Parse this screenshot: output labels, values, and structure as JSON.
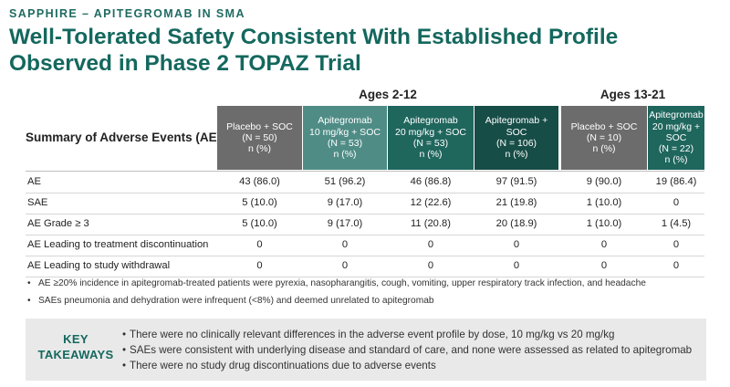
{
  "eyebrow": "SAPPHIRE – APITEGROMAB IN SMA",
  "title_line1": "Well-Tolerated Safety Consistent With Established Profile",
  "title_line2": "Observed in Phase 2 TOPAZ Trial",
  "colors": {
    "brand_teal": "#14685e",
    "placebo_gray": "#6c6c6c",
    "teal_light": "#4f8c86",
    "teal_mid": "#1f665d",
    "teal_dark": "#174d47"
  },
  "table": {
    "summary_label": "Summary of Adverse Events (AE)",
    "groups": [
      "Ages 2-12",
      "Ages 13-21"
    ],
    "columns": [
      {
        "lines": [
          "Placebo + SOC",
          "(N = 50)",
          "n (%)"
        ]
      },
      {
        "lines": [
          "Apitegromab",
          "10 mg/kg + SOC",
          "(N = 53)",
          "n (%)"
        ]
      },
      {
        "lines": [
          "Apitegromab",
          "20 mg/kg + SOC",
          "(N = 53)",
          "n (%)"
        ]
      },
      {
        "lines": [
          "Apitegromab +",
          "SOC",
          "(N = 106)",
          "n (%)"
        ]
      },
      {
        "lines": [
          "Placebo + SOC",
          "(N = 10)",
          "n (%)"
        ]
      },
      {
        "lines": [
          "Apitegromab",
          "20 mg/kg +",
          "SOC",
          "(N = 22)",
          "n (%)"
        ]
      }
    ],
    "rows": [
      {
        "label": "AE",
        "values": [
          "43 (86.0)",
          "51 (96.2)",
          "46 (86.8)",
          "97 (91.5)",
          "9 (90.0)",
          "19 (86.4)"
        ]
      },
      {
        "label": "SAE",
        "values": [
          "5 (10.0)",
          "9 (17.0)",
          "12 (22.6)",
          "21 (19.8)",
          "1 (10.0)",
          "0"
        ]
      },
      {
        "label": "AE Grade ≥ 3",
        "values": [
          "5 (10.0)",
          "9 (17.0)",
          "11 (20.8)",
          "20 (18.9)",
          "1 (10.0)",
          "1 (4.5)"
        ]
      },
      {
        "label": "AE Leading to treatment discontinuation",
        "values": [
          "0",
          "0",
          "0",
          "0",
          "0",
          "0"
        ]
      },
      {
        "label": "AE Leading to study withdrawal",
        "values": [
          "0",
          "0",
          "0",
          "0",
          "0",
          "0"
        ]
      }
    ]
  },
  "footnotes": [
    "AE ≥20% incidence in apitegromab-treated patients were pyrexia, nasopharangitis, cough, vomiting, upper respiratory track infection, and headache",
    "SAEs pneumonia and dehydration were infrequent (<8%) and deemed unrelated to apitegromab"
  ],
  "takeaways": {
    "label_line1": "KEY",
    "label_line2": "TAKEAWAYS",
    "items": [
      "There were no clinically relevant differences in the adverse event profile by dose, 10 mg/kg vs 20 mg/kg",
      "SAEs were consistent with underlying disease and standard of care, and none were assessed as related to apitegromab",
      "There were no study drug discontinuations due to adverse events"
    ]
  }
}
